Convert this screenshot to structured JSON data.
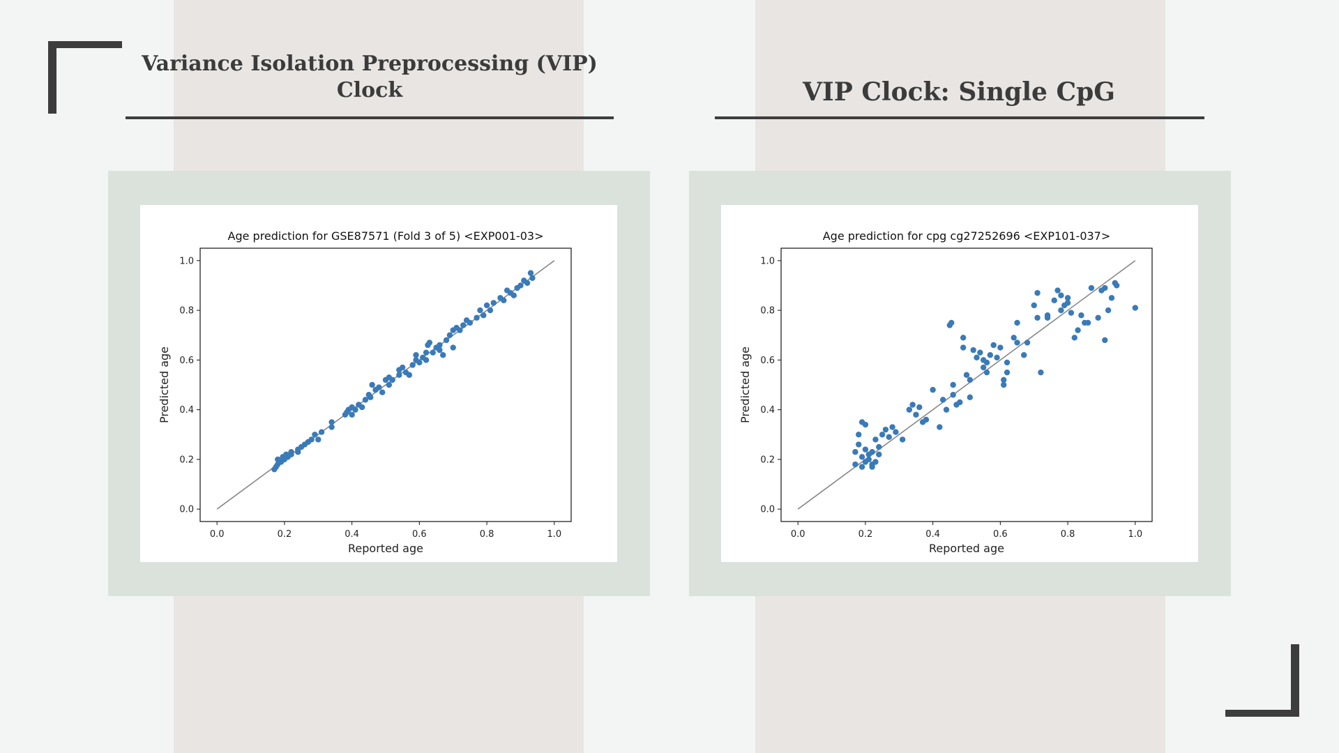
{
  "slide": {
    "left_heading": "Variance Isolation Preprocessing (VIP) Clock",
    "right_heading": "VIP Clock: Single CpG"
  },
  "colors": {
    "background": "#f2f5f4",
    "column_band": "#e8e5e2",
    "frame": "#dae2db",
    "accent_dark": "#3d3d3d",
    "scatter_point": "#3a7ab8",
    "reference_line": "#888888"
  },
  "chart_data": [
    {
      "type": "scatter",
      "title": "Age prediction for GSE87571 (Fold 3 of 5) <EXP001-03>",
      "xlabel": "Reported age",
      "ylabel": "Predicted age",
      "xlim": [
        -0.05,
        1.05
      ],
      "ylim": [
        -0.05,
        1.05
      ],
      "xticks": [
        "0.0",
        "0.2",
        "0.4",
        "0.6",
        "0.8",
        "1.0"
      ],
      "yticks": [
        "0.0",
        "0.2",
        "0.4",
        "0.6",
        "0.8",
        "1.0"
      ],
      "reference_line": [
        [
          0,
          0
        ],
        [
          1,
          1
        ]
      ],
      "series": [
        {
          "name": "samples",
          "points": [
            [
              0.17,
              0.16
            ],
            [
              0.175,
              0.17
            ],
            [
              0.18,
              0.18
            ],
            [
              0.18,
              0.2
            ],
            [
              0.19,
              0.19
            ],
            [
              0.195,
              0.21
            ],
            [
              0.2,
              0.2
            ],
            [
              0.205,
              0.22
            ],
            [
              0.21,
              0.21
            ],
            [
              0.22,
              0.23
            ],
            [
              0.22,
              0.22
            ],
            [
              0.24,
              0.24
            ],
            [
              0.24,
              0.23
            ],
            [
              0.25,
              0.25
            ],
            [
              0.26,
              0.26
            ],
            [
              0.27,
              0.27
            ],
            [
              0.28,
              0.28
            ],
            [
              0.29,
              0.3
            ],
            [
              0.3,
              0.28
            ],
            [
              0.31,
              0.31
            ],
            [
              0.34,
              0.33
            ],
            [
              0.34,
              0.35
            ],
            [
              0.38,
              0.38
            ],
            [
              0.385,
              0.39
            ],
            [
              0.39,
              0.4
            ],
            [
              0.4,
              0.38
            ],
            [
              0.4,
              0.41
            ],
            [
              0.41,
              0.4
            ],
            [
              0.42,
              0.42
            ],
            [
              0.43,
              0.41
            ],
            [
              0.44,
              0.44
            ],
            [
              0.45,
              0.46
            ],
            [
              0.455,
              0.45
            ],
            [
              0.46,
              0.5
            ],
            [
              0.47,
              0.48
            ],
            [
              0.48,
              0.49
            ],
            [
              0.49,
              0.47
            ],
            [
              0.5,
              0.52
            ],
            [
              0.51,
              0.5
            ],
            [
              0.51,
              0.53
            ],
            [
              0.52,
              0.52
            ],
            [
              0.54,
              0.54
            ],
            [
              0.54,
              0.56
            ],
            [
              0.55,
              0.57
            ],
            [
              0.56,
              0.55
            ],
            [
              0.57,
              0.54
            ],
            [
              0.58,
              0.58
            ],
            [
              0.59,
              0.6
            ],
            [
              0.59,
              0.62
            ],
            [
              0.6,
              0.59
            ],
            [
              0.61,
              0.61
            ],
            [
              0.62,
              0.6
            ],
            [
              0.62,
              0.63
            ],
            [
              0.625,
              0.66
            ],
            [
              0.63,
              0.67
            ],
            [
              0.64,
              0.63
            ],
            [
              0.65,
              0.65
            ],
            [
              0.66,
              0.64
            ],
            [
              0.66,
              0.66
            ],
            [
              0.67,
              0.62
            ],
            [
              0.68,
              0.68
            ],
            [
              0.69,
              0.7
            ],
            [
              0.7,
              0.65
            ],
            [
              0.7,
              0.72
            ],
            [
              0.71,
              0.73
            ],
            [
              0.72,
              0.72
            ],
            [
              0.73,
              0.74
            ],
            [
              0.74,
              0.76
            ],
            [
              0.75,
              0.75
            ],
            [
              0.77,
              0.77
            ],
            [
              0.78,
              0.8
            ],
            [
              0.79,
              0.78
            ],
            [
              0.8,
              0.82
            ],
            [
              0.81,
              0.8
            ],
            [
              0.82,
              0.83
            ],
            [
              0.84,
              0.85
            ],
            [
              0.85,
              0.84
            ],
            [
              0.86,
              0.88
            ],
            [
              0.87,
              0.87
            ],
            [
              0.88,
              0.86
            ],
            [
              0.89,
              0.89
            ],
            [
              0.9,
              0.9
            ],
            [
              0.91,
              0.92
            ],
            [
              0.92,
              0.91
            ],
            [
              0.93,
              0.95
            ],
            [
              0.935,
              0.93
            ]
          ]
        }
      ]
    },
    {
      "type": "scatter",
      "title": "Age prediction for cpg cg27252696 <EXP101-037>",
      "xlabel": "Reported age",
      "ylabel": "Predicted age",
      "xlim": [
        -0.05,
        1.05
      ],
      "ylim": [
        -0.05,
        1.05
      ],
      "xticks": [
        "0.0",
        "0.2",
        "0.4",
        "0.6",
        "0.8",
        "1.0"
      ],
      "yticks": [
        "0.0",
        "0.2",
        "0.4",
        "0.6",
        "0.8",
        "1.0"
      ],
      "reference_line": [
        [
          0,
          0
        ],
        [
          1,
          1
        ]
      ],
      "series": [
        {
          "name": "samples",
          "points": [
            [
              0.17,
              0.18
            ],
            [
              0.17,
              0.23
            ],
            [
              0.18,
              0.26
            ],
            [
              0.18,
              0.3
            ],
            [
              0.19,
              0.17
            ],
            [
              0.19,
              0.21
            ],
            [
              0.19,
              0.35
            ],
            [
              0.2,
              0.34
            ],
            [
              0.2,
              0.19
            ],
            [
              0.2,
              0.24
            ],
            [
              0.21,
              0.22
            ],
            [
              0.21,
              0.2
            ],
            [
              0.22,
              0.18
            ],
            [
              0.22,
              0.17
            ],
            [
              0.22,
              0.23
            ],
            [
              0.23,
              0.19
            ],
            [
              0.23,
              0.28
            ],
            [
              0.24,
              0.25
            ],
            [
              0.24,
              0.22
            ],
            [
              0.25,
              0.3
            ],
            [
              0.26,
              0.32
            ],
            [
              0.27,
              0.29
            ],
            [
              0.28,
              0.33
            ],
            [
              0.29,
              0.31
            ],
            [
              0.31,
              0.28
            ],
            [
              0.33,
              0.4
            ],
            [
              0.34,
              0.42
            ],
            [
              0.35,
              0.38
            ],
            [
              0.36,
              0.41
            ],
            [
              0.37,
              0.35
            ],
            [
              0.38,
              0.36
            ],
            [
              0.4,
              0.48
            ],
            [
              0.42,
              0.33
            ],
            [
              0.43,
              0.44
            ],
            [
              0.44,
              0.4
            ],
            [
              0.45,
              0.74
            ],
            [
              0.455,
              0.75
            ],
            [
              0.46,
              0.46
            ],
            [
              0.46,
              0.5
            ],
            [
              0.47,
              0.42
            ],
            [
              0.48,
              0.43
            ],
            [
              0.49,
              0.69
            ],
            [
              0.49,
              0.65
            ],
            [
              0.5,
              0.54
            ],
            [
              0.51,
              0.52
            ],
            [
              0.51,
              0.45
            ],
            [
              0.52,
              0.64
            ],
            [
              0.53,
              0.61
            ],
            [
              0.54,
              0.63
            ],
            [
              0.55,
              0.57
            ],
            [
              0.55,
              0.6
            ],
            [
              0.56,
              0.59
            ],
            [
              0.56,
              0.55
            ],
            [
              0.57,
              0.62
            ],
            [
              0.58,
              0.66
            ],
            [
              0.59,
              0.61
            ],
            [
              0.6,
              0.65
            ],
            [
              0.61,
              0.5
            ],
            [
              0.61,
              0.52
            ],
            [
              0.62,
              0.55
            ],
            [
              0.62,
              0.59
            ],
            [
              0.64,
              0.69
            ],
            [
              0.65,
              0.67
            ],
            [
              0.65,
              0.75
            ],
            [
              0.67,
              0.62
            ],
            [
              0.68,
              0.67
            ],
            [
              0.7,
              0.82
            ],
            [
              0.71,
              0.87
            ],
            [
              0.71,
              0.77
            ],
            [
              0.72,
              0.55
            ],
            [
              0.74,
              0.77
            ],
            [
              0.74,
              0.78
            ],
            [
              0.76,
              0.84
            ],
            [
              0.77,
              0.88
            ],
            [
              0.78,
              0.86
            ],
            [
              0.78,
              0.8
            ],
            [
              0.79,
              0.82
            ],
            [
              0.8,
              0.83
            ],
            [
              0.8,
              0.85
            ],
            [
              0.81,
              0.79
            ],
            [
              0.82,
              0.69
            ],
            [
              0.83,
              0.72
            ],
            [
              0.84,
              0.78
            ],
            [
              0.85,
              0.75
            ],
            [
              0.86,
              0.75
            ],
            [
              0.87,
              0.89
            ],
            [
              0.89,
              0.77
            ],
            [
              0.9,
              0.88
            ],
            [
              0.91,
              0.89
            ],
            [
              0.91,
              0.68
            ],
            [
              0.92,
              0.8
            ],
            [
              0.93,
              0.85
            ],
            [
              0.94,
              0.91
            ],
            [
              0.945,
              0.9
            ],
            [
              1.0,
              0.81
            ]
          ]
        }
      ]
    }
  ]
}
